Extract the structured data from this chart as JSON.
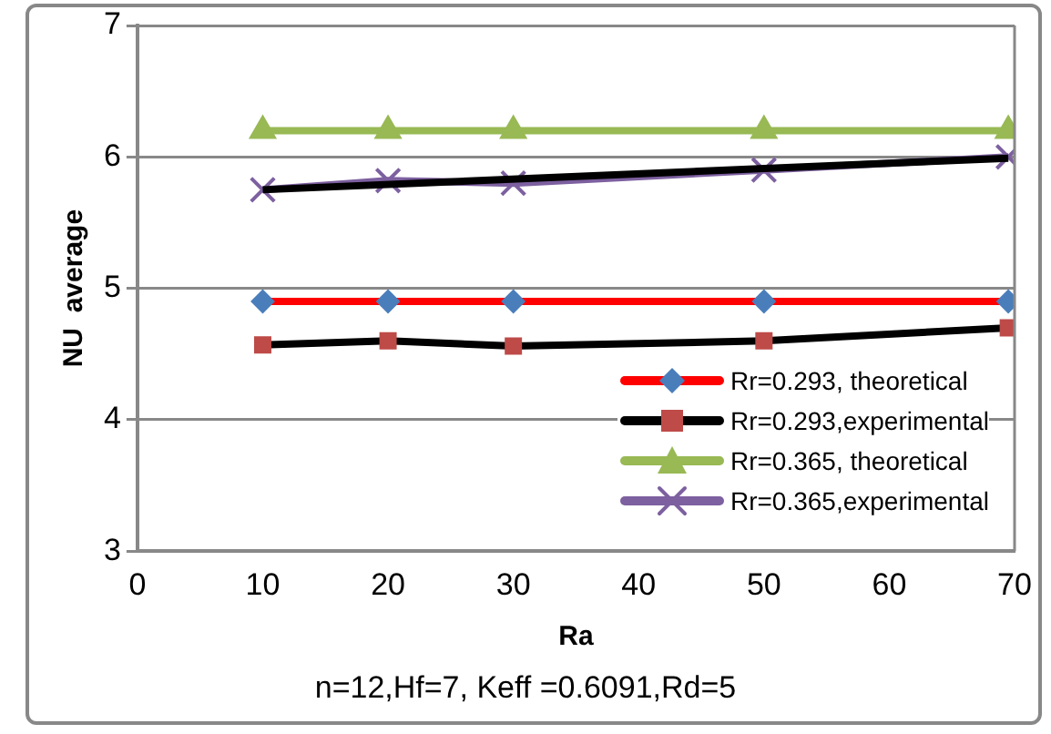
{
  "chart_data": {
    "type": "line",
    "xlabel": "Ra",
    "ylabel": "NU  average",
    "annotations": [
      "n=12,Hf=7, Keff =0.6091,Rd=5"
    ],
    "x": [
      10,
      20,
      30,
      50,
      69.5
    ],
    "xlim": [
      0,
      70
    ],
    "xticks": [
      0,
      10,
      20,
      30,
      40,
      50,
      60,
      70
    ],
    "ylim": [
      3,
      7
    ],
    "yticks": [
      3,
      4,
      5,
      6,
      7
    ],
    "grid": "y",
    "legend": "bottom right",
    "line_style": "solid",
    "series": [
      {
        "name": "Rr=0.293, theoretical",
        "color": "#ff0000",
        "colors": [
          "#4a7ebb",
          "#4a7ebb",
          "#4a7ebb",
          "#4a7ebb",
          "#4a7ebb"
        ],
        "marker": "diamond",
        "values": [
          4.9,
          4.9,
          4.9,
          4.9,
          4.9
        ]
      },
      {
        "name": "Rr=0.293,experimental",
        "color": "#000000",
        "colors": [
          "#be4b48",
          "#be4b48",
          "#be4b48",
          "#be4b48",
          "#be4b48"
        ],
        "marker": "square",
        "values": [
          4.57,
          4.6,
          4.56,
          4.6,
          4.7
        ]
      },
      {
        "name": "Rr=0.365, theoretical",
        "color": "#98b954",
        "colors": [
          "#98b954",
          "#98b954",
          "#98b954",
          "#98b954",
          "#98b954"
        ],
        "marker": "triangle",
        "values": [
          6.2,
          6.2,
          6.2,
          6.2,
          6.2
        ]
      },
      {
        "color": "#000000",
        "marker": "none",
        "x": [
          10,
          69.5
        ],
        "values": [
          5.75,
          5.99
        ]
      },
      {
        "name": "Rr=0.365,experimental",
        "color": "#7d60a0",
        "colors": [
          "#7d60a0",
          "#7d60a0",
          "#7d60a0",
          "#7d60a0",
          "#7d60a0"
        ],
        "marker": "cross",
        "values": [
          5.75,
          5.82,
          5.8,
          5.9,
          6.0
        ]
      }
    ]
  }
}
